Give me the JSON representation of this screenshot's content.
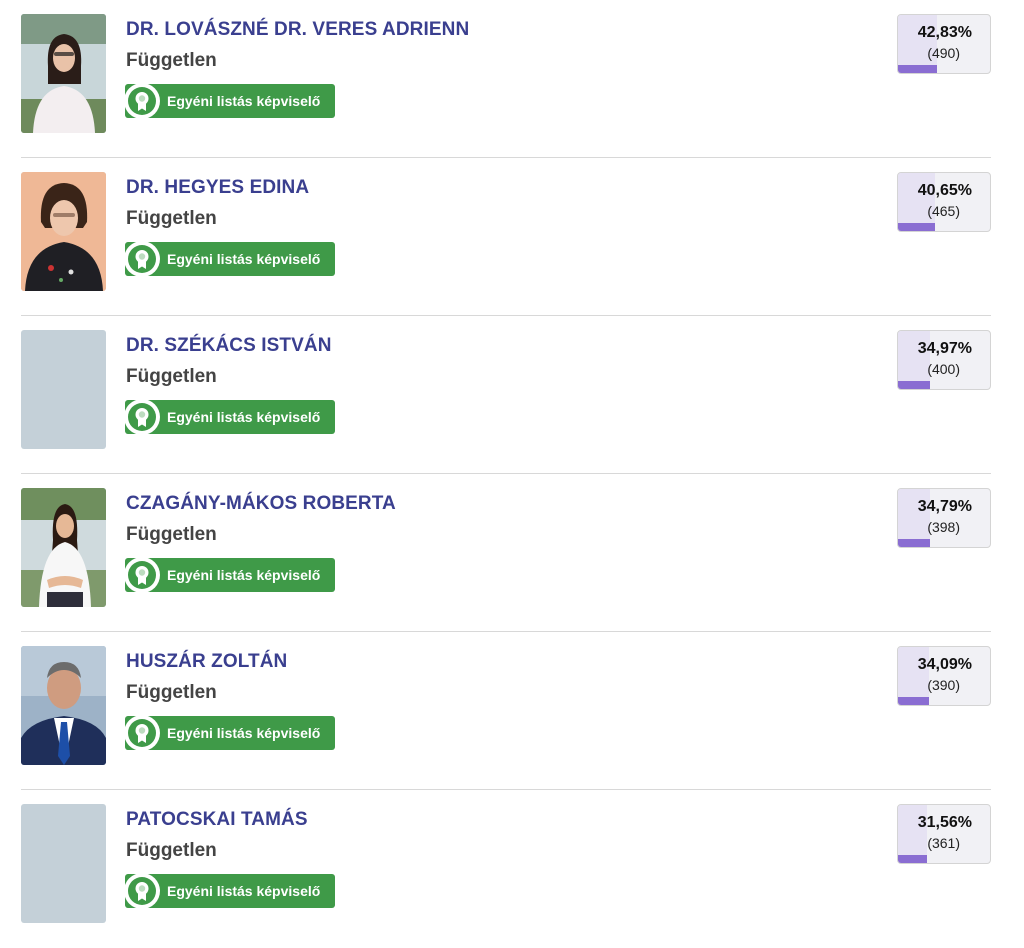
{
  "candidates": [
    {
      "name": "DR. LOVÁSZNÉ DR. VERES ADRIENN",
      "party": "Független",
      "badge": "Egyéni listás képviselő",
      "percent_label": "42,83%",
      "votes_label": "(490)",
      "share": 0.4283,
      "photo": "woman-dark-hair-lake"
    },
    {
      "name": "DR. HEGYES EDINA",
      "party": "Független",
      "badge": "Egyéni listás képviselő",
      "percent_label": "40,65%",
      "votes_label": "(465)",
      "share": 0.4065,
      "photo": "woman-short-hair-peach"
    },
    {
      "name": "DR. SZÉKÁCS ISTVÁN",
      "party": "Független",
      "badge": "Egyéni listás képviselő",
      "percent_label": "34,97%",
      "votes_label": "(400)",
      "share": 0.3497,
      "photo": "placeholder"
    },
    {
      "name": "CZAGÁNY-MÁKOS ROBERTA",
      "party": "Független",
      "badge": "Egyéni listás képviselő",
      "percent_label": "34,79%",
      "votes_label": "(398)",
      "share": 0.3479,
      "photo": "woman-white-shirt-lake"
    },
    {
      "name": "HUSZÁR ZOLTÁN",
      "party": "Független",
      "badge": "Egyéni listás képviselő",
      "percent_label": "34,09%",
      "votes_label": "(390)",
      "share": 0.3409,
      "photo": "man-suit-tie"
    },
    {
      "name": "PATOCSKAI TAMÁS",
      "party": "Független",
      "badge": "Egyéni listás képviselő",
      "percent_label": "31,56%",
      "votes_label": "(361)",
      "share": 0.3156,
      "photo": "placeholder"
    }
  ],
  "colors": {
    "name": "#3a3f8f",
    "badge": "#3f9a48",
    "bar": "#8a6dd2",
    "placeholder": "#c4d0d8"
  },
  "icons": {
    "badge": "award-ribbon-icon"
  }
}
